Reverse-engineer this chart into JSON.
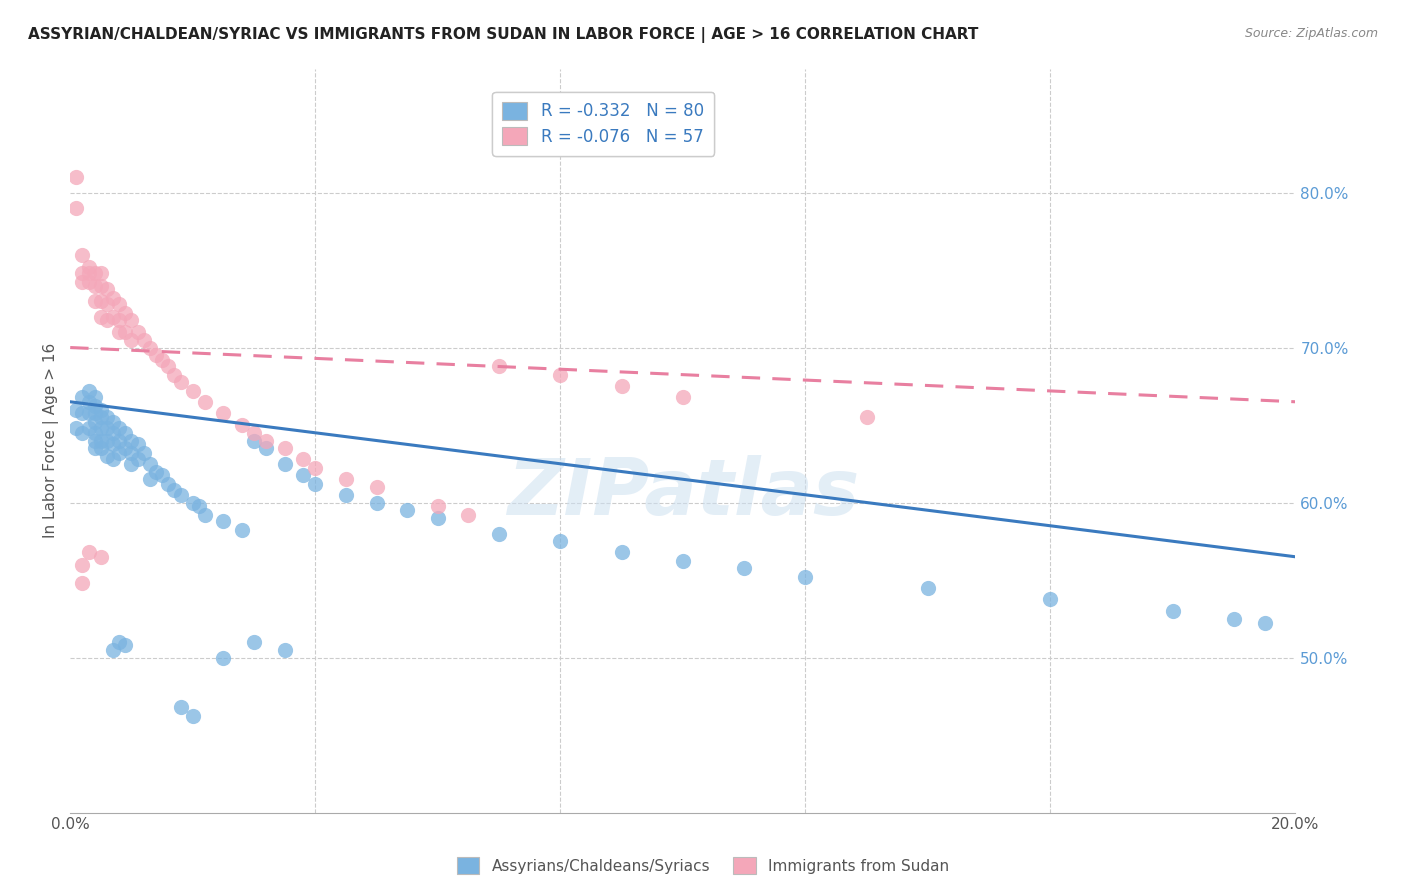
{
  "title": "ASSYRIAN/CHALDEAN/SYRIAC VS IMMIGRANTS FROM SUDAN IN LABOR FORCE | AGE > 16 CORRELATION CHART",
  "source": "Source: ZipAtlas.com",
  "ylabel": "In Labor Force | Age > 16",
  "xlim": [
    0.0,
    0.2
  ],
  "ylim": [
    0.4,
    0.88
  ],
  "y_ticks_right": [
    0.5,
    0.6,
    0.7,
    0.8
  ],
  "y_tick_labels_right": [
    "50.0%",
    "60.0%",
    "70.0%",
    "80.0%"
  ],
  "legend_blue_label": "R = -0.332   N = 80",
  "legend_pink_label": "R = -0.076   N = 57",
  "legend_bottom_blue": "Assyrians/Chaldeans/Syriacs",
  "legend_bottom_pink": "Immigrants from Sudan",
  "blue_color": "#7ab3e0",
  "pink_color": "#f4a7b9",
  "trendline_blue_color": "#3a7abf",
  "trendline_pink_color": "#e87fa0",
  "watermark": "ZIPatlas",
  "blue_intercept": 0.665,
  "blue_slope": -0.5,
  "pink_intercept": 0.7,
  "pink_slope": -0.175,
  "blue_x": [
    0.001,
    0.001,
    0.002,
    0.002,
    0.002,
    0.003,
    0.003,
    0.003,
    0.003,
    0.004,
    0.004,
    0.004,
    0.004,
    0.004,
    0.004,
    0.004,
    0.005,
    0.005,
    0.005,
    0.005,
    0.005,
    0.006,
    0.006,
    0.006,
    0.006,
    0.007,
    0.007,
    0.007,
    0.007,
    0.008,
    0.008,
    0.008,
    0.009,
    0.009,
    0.01,
    0.01,
    0.01,
    0.011,
    0.011,
    0.012,
    0.013,
    0.013,
    0.014,
    0.015,
    0.016,
    0.017,
    0.018,
    0.02,
    0.021,
    0.022,
    0.025,
    0.028,
    0.03,
    0.032,
    0.035,
    0.038,
    0.04,
    0.045,
    0.05,
    0.055,
    0.06,
    0.07,
    0.08,
    0.09,
    0.1,
    0.11,
    0.12,
    0.14,
    0.16,
    0.18,
    0.19,
    0.195,
    0.03,
    0.035,
    0.018,
    0.02,
    0.025,
    0.008,
    0.009,
    0.007
  ],
  "blue_y": [
    0.66,
    0.648,
    0.668,
    0.658,
    0.645,
    0.672,
    0.665,
    0.658,
    0.648,
    0.668,
    0.662,
    0.658,
    0.652,
    0.645,
    0.64,
    0.635,
    0.66,
    0.655,
    0.648,
    0.64,
    0.635,
    0.655,
    0.648,
    0.64,
    0.63,
    0.652,
    0.645,
    0.638,
    0.628,
    0.648,
    0.64,
    0.632,
    0.645,
    0.635,
    0.64,
    0.632,
    0.625,
    0.638,
    0.628,
    0.632,
    0.625,
    0.615,
    0.62,
    0.618,
    0.612,
    0.608,
    0.605,
    0.6,
    0.598,
    0.592,
    0.588,
    0.582,
    0.64,
    0.635,
    0.625,
    0.618,
    0.612,
    0.605,
    0.6,
    0.595,
    0.59,
    0.58,
    0.575,
    0.568,
    0.562,
    0.558,
    0.552,
    0.545,
    0.538,
    0.53,
    0.525,
    0.522,
    0.51,
    0.505,
    0.468,
    0.462,
    0.5,
    0.51,
    0.508,
    0.505
  ],
  "pink_x": [
    0.001,
    0.001,
    0.002,
    0.002,
    0.002,
    0.003,
    0.003,
    0.003,
    0.004,
    0.004,
    0.004,
    0.005,
    0.005,
    0.005,
    0.005,
    0.006,
    0.006,
    0.006,
    0.007,
    0.007,
    0.008,
    0.008,
    0.008,
    0.009,
    0.009,
    0.01,
    0.01,
    0.011,
    0.012,
    0.013,
    0.014,
    0.015,
    0.016,
    0.017,
    0.018,
    0.02,
    0.022,
    0.025,
    0.028,
    0.03,
    0.032,
    0.035,
    0.038,
    0.04,
    0.045,
    0.05,
    0.06,
    0.065,
    0.07,
    0.08,
    0.09,
    0.1,
    0.13,
    0.003,
    0.005,
    0.002,
    0.002
  ],
  "pink_y": [
    0.81,
    0.79,
    0.76,
    0.742,
    0.748,
    0.752,
    0.748,
    0.742,
    0.748,
    0.74,
    0.73,
    0.748,
    0.74,
    0.73,
    0.72,
    0.738,
    0.728,
    0.718,
    0.732,
    0.72,
    0.728,
    0.718,
    0.71,
    0.722,
    0.71,
    0.718,
    0.705,
    0.71,
    0.705,
    0.7,
    0.695,
    0.692,
    0.688,
    0.682,
    0.678,
    0.672,
    0.665,
    0.658,
    0.65,
    0.645,
    0.64,
    0.635,
    0.628,
    0.622,
    0.615,
    0.61,
    0.598,
    0.592,
    0.688,
    0.682,
    0.675,
    0.668,
    0.655,
    0.568,
    0.565,
    0.56,
    0.548
  ]
}
